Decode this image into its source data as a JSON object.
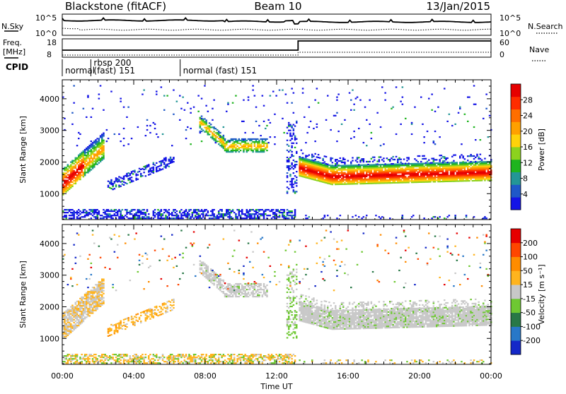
{
  "header": {
    "radar": "Blackstone (fitACF)",
    "beam": "Beam 10",
    "date": "13/Jan/2015"
  },
  "noise_panel": {
    "left_label": "N.Sky",
    "left_top_tick": "10^5",
    "left_bottom_tick": "10^0",
    "right_label": "N.Search",
    "right_top_tick": "10^5",
    "right_bottom_tick": "10^0"
  },
  "freq_panel": {
    "left_label_1": "Freq.",
    "left_label_2": "[MHz]",
    "left_ticks": [
      "18",
      "8"
    ],
    "right_label": "Nave",
    "right_ticks": [
      "60",
      "0"
    ],
    "freq_step_x_hours": 13.2
  },
  "cpid": {
    "label": "CPID",
    "segments": [
      {
        "start": 0,
        "line1": "normal",
        "line2": ""
      },
      {
        "start": 1.6,
        "line1": "rbsp 200",
        "line2": "(fast) 151"
      },
      {
        "start": 6.6,
        "line1": "normal (fast) 151",
        "line2": ""
      }
    ]
  },
  "chart_data": [
    {
      "type": "heatmap",
      "name": "power",
      "ylabel": "Slant Range [km]",
      "yticks": [
        1000,
        2000,
        3000,
        4000
      ],
      "ylim": [
        180,
        4600
      ],
      "xlim": [
        0,
        24
      ],
      "colorbar_label": "Power [dB]",
      "colorbar_ticks": [
        4,
        8,
        12,
        16,
        20,
        24,
        28
      ],
      "colorbar_colors": [
        "#1414e6",
        "#1f58c8",
        "#239696",
        "#1fb41f",
        "#8cd21e",
        "#ffd20a",
        "#ffa000",
        "#ff6e00",
        "#ff2d00",
        "#e60000"
      ]
    },
    {
      "type": "heatmap",
      "name": "velocity",
      "ylabel": "Slant Range [km]",
      "yticks": [
        1000,
        2000,
        3000,
        4000
      ],
      "ylim": [
        180,
        4600
      ],
      "xlim": [
        0,
        24
      ],
      "xlabel": "Time UT",
      "xticks": [
        "00:00",
        "04:00",
        "08:00",
        "12:00",
        "16:00",
        "20:00",
        "00:00"
      ],
      "colorbar_label": "Velocity [m s⁻¹]",
      "colorbar_ticks": [
        200,
        100,
        50,
        15,
        -15,
        -50,
        -100,
        -200
      ],
      "colorbar_colors": [
        "#1428c8",
        "#2878c8",
        "#287846",
        "#6ec832",
        "#c8c8c8",
        "#ffb41e",
        "#ff8c00",
        "#ff4600",
        "#e60000"
      ]
    }
  ]
}
